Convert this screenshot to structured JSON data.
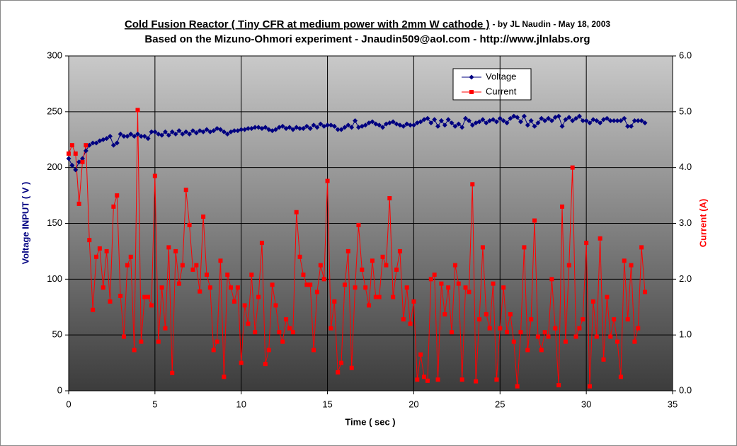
{
  "chart_data": {
    "type": "line",
    "title": "Cold Fusion Reactor ( Tiny CFR at medium power with 2mm W cathode )",
    "title_note": " - by JL Naudin - May 18, 2003",
    "subtitle": "Based on the Mizuno-Ohmori experiment - Jnaudin509@aol.com - http://www.jlnlabs.org",
    "xlabel": "Time ( sec )",
    "ylabel": "Voltage INPUT ( V )",
    "y2label": "Current (A)",
    "xlim": [
      0,
      35
    ],
    "xticks": [
      0,
      5,
      10,
      15,
      20,
      25,
      30,
      35
    ],
    "ylim": [
      0,
      300
    ],
    "yticks": [
      0,
      50,
      100,
      150,
      200,
      250,
      300
    ],
    "y2lim": [
      0,
      6
    ],
    "y2ticks": [
      {
        "value": 0,
        "label": "0.0"
      },
      {
        "value": 1,
        "label": "1.0"
      },
      {
        "value": 2,
        "label": "2.0"
      },
      {
        "value": 3,
        "label": "3.0"
      },
      {
        "value": 4,
        "label": "4.0"
      },
      {
        "value": 5,
        "label": "5.0"
      },
      {
        "value": 6,
        "label": "6.0"
      }
    ],
    "grid": true,
    "legend": "top-right",
    "x": [
      0,
      0.2,
      0.4,
      0.6,
      0.8,
      1,
      1.2,
      1.4,
      1.6,
      1.8,
      2,
      2.2,
      2.4,
      2.6,
      2.8,
      3,
      3.2,
      3.4,
      3.6,
      3.8,
      4,
      4.2,
      4.4,
      4.6,
      4.8,
      5,
      5.2,
      5.4,
      5.6,
      5.8,
      6,
      6.2,
      6.4,
      6.6,
      6.8,
      7,
      7.2,
      7.4,
      7.6,
      7.8,
      8,
      8.2,
      8.4,
      8.6,
      8.8,
      9,
      9.2,
      9.4,
      9.6,
      9.8,
      10,
      10.2,
      10.4,
      10.6,
      10.8,
      11,
      11.2,
      11.4,
      11.6,
      11.8,
      12,
      12.2,
      12.4,
      12.6,
      12.8,
      13,
      13.2,
      13.4,
      13.6,
      13.8,
      14,
      14.2,
      14.4,
      14.6,
      14.8,
      15,
      15.2,
      15.4,
      15.6,
      15.8,
      16,
      16.2,
      16.4,
      16.6,
      16.8,
      17,
      17.2,
      17.4,
      17.6,
      17.8,
      18,
      18.2,
      18.4,
      18.6,
      18.8,
      19,
      19.2,
      19.4,
      19.6,
      19.8,
      20,
      20.2,
      20.4,
      20.6,
      20.8,
      21,
      21.2,
      21.4,
      21.6,
      21.8,
      22,
      22.2,
      22.4,
      22.6,
      22.8,
      23,
      23.2,
      23.4,
      23.6,
      23.8,
      24,
      24.2,
      24.4,
      24.6,
      24.8,
      25,
      25.2,
      25.4,
      25.6,
      25.8,
      26,
      26.2,
      26.4,
      26.6,
      26.8,
      27,
      27.2,
      27.4,
      27.6,
      27.8,
      28,
      28.2,
      28.4,
      28.6,
      28.8,
      29,
      29.2,
      29.4,
      29.6,
      29.8,
      30,
      30.2,
      30.4,
      30.6,
      30.8,
      31,
      31.2,
      31.4,
      31.6,
      31.8,
      32,
      32.2,
      32.4,
      32.6,
      32.8,
      33,
      33.2,
      33.4
    ],
    "series": [
      {
        "name": "Voltage",
        "color": "#000080",
        "marker": "diamond",
        "values": [
          208,
          202,
          198,
          205,
          208,
          215,
          220,
          222,
          222,
          224,
          225,
          226,
          228,
          220,
          222,
          230,
          228,
          228,
          230,
          228,
          230,
          228,
          228,
          226,
          232,
          232,
          230,
          229,
          232,
          229,
          232,
          230,
          233,
          230,
          232,
          230,
          233,
          231,
          233,
          232,
          234,
          232,
          233,
          235,
          234,
          232,
          230,
          232,
          233,
          233,
          234,
          234,
          235,
          235,
          236,
          236,
          235,
          236,
          234,
          233,
          234,
          236,
          237,
          235,
          236,
          234,
          236,
          235,
          235,
          237,
          235,
          238,
          236,
          239,
          237,
          238,
          238,
          237,
          234,
          234,
          236,
          238,
          236,
          242,
          236,
          237,
          238,
          240,
          241,
          239,
          238,
          236,
          239,
          240,
          241,
          239,
          238,
          237,
          239,
          238,
          238,
          240,
          241,
          243,
          244,
          240,
          243,
          237,
          242,
          238,
          243,
          240,
          237,
          239,
          236,
          244,
          242,
          238,
          240,
          241,
          243,
          240,
          242,
          243,
          241,
          244,
          242,
          240,
          244,
          246,
          245,
          241,
          246,
          238,
          242,
          237,
          240,
          244,
          242,
          244,
          242,
          245,
          246,
          237,
          243,
          245,
          242,
          244,
          246,
          242,
          242,
          240,
          243,
          242,
          240,
          243,
          244,
          242,
          242,
          242,
          242,
          244,
          237,
          237,
          242,
          242,
          242,
          240
        ]
      },
      {
        "name": "Current",
        "color": "#ff0000",
        "marker": "square",
        "axis": "y2",
        "values": [
          4.25,
          4.4,
          4.25,
          3.35,
          4.1,
          4.4,
          2.7,
          1.45,
          2.4,
          2.55,
          1.85,
          2.5,
          1.6,
          3.3,
          3.5,
          1.7,
          0.97,
          2.25,
          2.4,
          0.73,
          5.03,
          0.88,
          1.68,
          1.68,
          1.53,
          3.85,
          0.88,
          1.85,
          1.12,
          2.57,
          0.32,
          2.5,
          1.92,
          2.25,
          3.6,
          2.97,
          2.17,
          2.25,
          1.78,
          3.12,
          2.08,
          1.85,
          0.73,
          0.88,
          2.33,
          0.25,
          2.08,
          1.85,
          1.6,
          1.85,
          0.5,
          1.53,
          1.2,
          2.08,
          1.05,
          1.68,
          2.65,
          0.48,
          0.73,
          1.9,
          1.53,
          1.05,
          0.88,
          1.28,
          1.12,
          1.05,
          3.2,
          2.4,
          2.08,
          1.9,
          1.9,
          0.73,
          1.77,
          2.25,
          2,
          3.76,
          1.12,
          1.6,
          0.33,
          0.5,
          1.9,
          2.5,
          0.41,
          1.85,
          2.97,
          2.17,
          1.85,
          1.53,
          2.33,
          1.68,
          1.68,
          2.4,
          2.25,
          3.45,
          1.68,
          2.17,
          2.5,
          1.28,
          1.85,
          1.2,
          1.6,
          0.2,
          0.65,
          0.25,
          0.18,
          2,
          2.08,
          0.2,
          1.92,
          1.37,
          1.85,
          1.05,
          2.25,
          1.92,
          0.2,
          1.85,
          1.77,
          3.7,
          0.17,
          1.28,
          2.57,
          1.37,
          1.12,
          1.92,
          0.2,
          1.12,
          1.85,
          1.05,
          1.37,
          0.88,
          0.08,
          1.05,
          2.57,
          0.73,
          1.28,
          3.05,
          0.97,
          0.73,
          1.05,
          0.97,
          2,
          1.12,
          0.1,
          3.3,
          0.88,
          2.25,
          4,
          0.97,
          1.12,
          1.28,
          2.65,
          0.08,
          1.6,
          0.97,
          2.73,
          0.56,
          1.68,
          0.97,
          1.28,
          0.88,
          0.25,
          2.33,
          1.28,
          2.25,
          0.88,
          1.12,
          2.57,
          1.77
        ]
      }
    ]
  }
}
